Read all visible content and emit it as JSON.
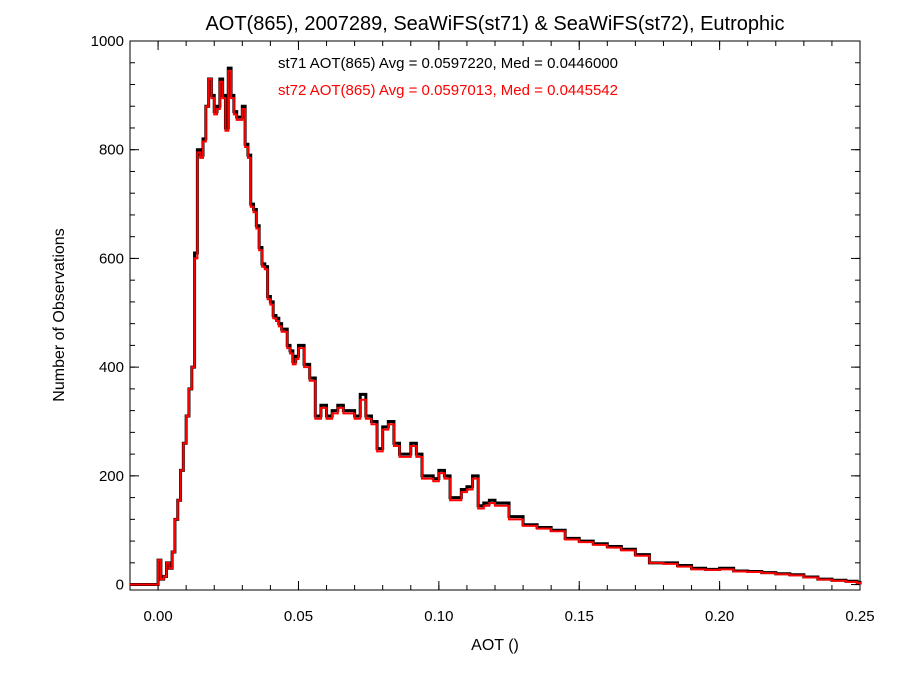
{
  "chart_data": {
    "type": "line",
    "step": true,
    "title": "AOT(865), 2007289, SeaWiFS(st71) & SeaWiFS(st72), Eutrophic",
    "xlabel": "AOT ()",
    "ylabel": "Number of Observations",
    "xlim": [
      -0.01,
      0.25
    ],
    "ylim": [
      -10,
      1000
    ],
    "x_ticks": [
      0.0,
      0.05,
      0.1,
      0.15,
      0.2,
      0.25
    ],
    "x_tick_labels": [
      "0.00",
      "0.05",
      "0.10",
      "0.15",
      "0.20",
      "0.25"
    ],
    "y_ticks": [
      0,
      200,
      400,
      600,
      800,
      1000
    ],
    "y_tick_labels": [
      "0",
      "200",
      "400",
      "600",
      "800",
      "1000"
    ],
    "grid": false,
    "annotations": [
      {
        "text": "st71 AOT(865) Avg = 0.0597220, Med = 0.0446000",
        "color": "#000000"
      },
      {
        "text": "st72 AOT(865) Avg = 0.0597013, Med = 0.0445542",
        "color": "#ff0000"
      }
    ],
    "bin_width": 0.001,
    "series": [
      {
        "name": "st71",
        "color": "#000000",
        "x": [
          0.0,
          0.001,
          0.002,
          0.003,
          0.004,
          0.005,
          0.006,
          0.007,
          0.008,
          0.009,
          0.01,
          0.011,
          0.012,
          0.013,
          0.014,
          0.015,
          0.016,
          0.017,
          0.018,
          0.019,
          0.02,
          0.021,
          0.022,
          0.023,
          0.024,
          0.025,
          0.026,
          0.027,
          0.028,
          0.029,
          0.03,
          0.031,
          0.032,
          0.033,
          0.034,
          0.035,
          0.036,
          0.037,
          0.038,
          0.039,
          0.04,
          0.041,
          0.042,
          0.043,
          0.044,
          0.045,
          0.046,
          0.047,
          0.048,
          0.049,
          0.05,
          0.052,
          0.054,
          0.056,
          0.058,
          0.06,
          0.062,
          0.064,
          0.066,
          0.068,
          0.07,
          0.072,
          0.074,
          0.076,
          0.078,
          0.08,
          0.082,
          0.084,
          0.086,
          0.088,
          0.09,
          0.092,
          0.094,
          0.096,
          0.098,
          0.1,
          0.102,
          0.104,
          0.106,
          0.108,
          0.11,
          0.112,
          0.114,
          0.116,
          0.118,
          0.12,
          0.125,
          0.13,
          0.135,
          0.14,
          0.145,
          0.15,
          0.155,
          0.16,
          0.165,
          0.17,
          0.175,
          0.18,
          0.185,
          0.19,
          0.195,
          0.2,
          0.205,
          0.21,
          0.215,
          0.22,
          0.225,
          0.23,
          0.235,
          0.24,
          0.245,
          0.249
        ],
        "values": [
          45,
          10,
          15,
          40,
          30,
          60,
          120,
          155,
          210,
          260,
          310,
          360,
          400,
          610,
          800,
          790,
          820,
          880,
          930,
          900,
          870,
          880,
          930,
          900,
          840,
          950,
          900,
          870,
          860,
          860,
          880,
          810,
          790,
          700,
          690,
          660,
          620,
          590,
          585,
          530,
          520,
          495,
          490,
          480,
          470,
          470,
          440,
          430,
          410,
          420,
          440,
          405,
          380,
          310,
          330,
          310,
          320,
          330,
          320,
          320,
          310,
          350,
          310,
          300,
          250,
          290,
          300,
          260,
          240,
          240,
          260,
          240,
          200,
          200,
          195,
          210,
          200,
          160,
          160,
          175,
          180,
          200,
          145,
          150,
          155,
          150,
          125,
          110,
          105,
          100,
          85,
          80,
          75,
          70,
          65,
          55,
          40,
          40,
          35,
          30,
          28,
          30,
          25,
          24,
          22,
          20,
          18,
          14,
          10,
          8,
          6,
          4
        ]
      },
      {
        "name": "st72",
        "color": "#ff0000",
        "x": [
          0.0,
          0.001,
          0.002,
          0.003,
          0.004,
          0.005,
          0.006,
          0.007,
          0.008,
          0.009,
          0.01,
          0.011,
          0.012,
          0.013,
          0.014,
          0.015,
          0.016,
          0.017,
          0.018,
          0.019,
          0.02,
          0.021,
          0.022,
          0.023,
          0.024,
          0.025,
          0.026,
          0.027,
          0.028,
          0.029,
          0.03,
          0.031,
          0.032,
          0.033,
          0.034,
          0.035,
          0.036,
          0.037,
          0.038,
          0.039,
          0.04,
          0.041,
          0.042,
          0.043,
          0.044,
          0.045,
          0.046,
          0.047,
          0.048,
          0.049,
          0.05,
          0.052,
          0.054,
          0.056,
          0.058,
          0.06,
          0.062,
          0.064,
          0.066,
          0.068,
          0.07,
          0.072,
          0.074,
          0.076,
          0.078,
          0.08,
          0.082,
          0.084,
          0.086,
          0.088,
          0.09,
          0.092,
          0.094,
          0.096,
          0.098,
          0.1,
          0.102,
          0.104,
          0.106,
          0.108,
          0.11,
          0.112,
          0.114,
          0.116,
          0.118,
          0.12,
          0.125,
          0.13,
          0.135,
          0.14,
          0.145,
          0.15,
          0.155,
          0.16,
          0.165,
          0.17,
          0.175,
          0.18,
          0.185,
          0.19,
          0.195,
          0.2,
          0.205,
          0.21,
          0.215,
          0.22,
          0.225,
          0.23,
          0.235,
          0.24,
          0.245,
          0.249
        ],
        "values": [
          45,
          10,
          15,
          40,
          30,
          60,
          120,
          155,
          210,
          260,
          310,
          360,
          400,
          600,
          795,
          785,
          815,
          880,
          930,
          895,
          865,
          875,
          925,
          895,
          835,
          945,
          895,
          865,
          855,
          855,
          875,
          805,
          785,
          695,
          685,
          655,
          615,
          585,
          580,
          525,
          515,
          490,
          485,
          475,
          465,
          465,
          435,
          425,
          405,
          415,
          435,
          400,
          375,
          305,
          325,
          305,
          315,
          325,
          315,
          315,
          305,
          340,
          305,
          295,
          245,
          285,
          295,
          255,
          235,
          235,
          255,
          235,
          195,
          195,
          190,
          205,
          195,
          155,
          155,
          170,
          175,
          195,
          140,
          145,
          150,
          145,
          120,
          108,
          103,
          98,
          83,
          78,
          73,
          68,
          63,
          53,
          40,
          38,
          33,
          28,
          27,
          28,
          24,
          23,
          21,
          19,
          17,
          13,
          9,
          7,
          5,
          3
        ]
      }
    ]
  }
}
